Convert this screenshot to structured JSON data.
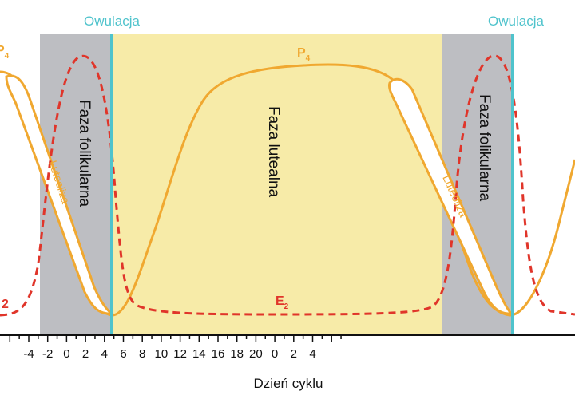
{
  "colors": {
    "follicular_phase": "#bdbec2",
    "luteal_phase": "#f7eba8",
    "ovulation_line": "#4fc3cc",
    "p4_curve": "#f0a830",
    "e2_curve": "#e0352a",
    "axis": "#111111"
  },
  "labels": {
    "ovulation_left": "Owulacja",
    "ovulation_right": "Owulacja",
    "follicular_left": "Faza folikularna",
    "follicular_right": "Faza folikularna",
    "luteal": "Faza lutealna",
    "luteolysis_left": "Luteoliza",
    "luteolysis_right": "Luteoliza",
    "p4_main": "P",
    "p4_sub": "4",
    "p4_edge": "P",
    "p4_edge_sub": "4",
    "e2_main": "E",
    "e2_sub": "2",
    "e2_edge": "2",
    "xlabel": "Dzień cyklu"
  },
  "axis": {
    "ticks": [
      "-4",
      "-2",
      "0",
      "2",
      "4",
      "6",
      "8",
      "10",
      "12",
      "14",
      "16",
      "18",
      "20",
      "0",
      "2",
      "4"
    ]
  }
}
